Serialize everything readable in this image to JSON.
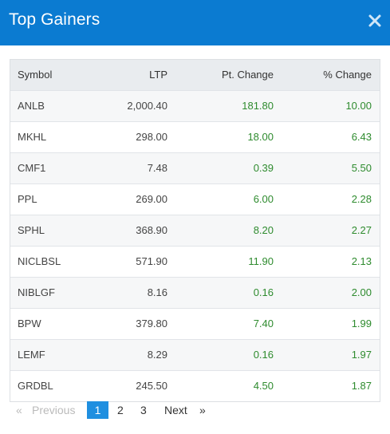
{
  "header": {
    "title": "Top Gainers"
  },
  "table": {
    "columns": [
      "Symbol",
      "LTP",
      "Pt. Change",
      "% Change"
    ],
    "rows": [
      {
        "symbol": "ANLB",
        "ltp": "2,000.40",
        "pt": "181.80",
        "pct": "10.00"
      },
      {
        "symbol": "MKHL",
        "ltp": "298.00",
        "pt": "18.00",
        "pct": "6.43"
      },
      {
        "symbol": "CMF1",
        "ltp": "7.48",
        "pt": "0.39",
        "pct": "5.50"
      },
      {
        "symbol": "PPL",
        "ltp": "269.00",
        "pt": "6.00",
        "pct": "2.28"
      },
      {
        "symbol": "SPHL",
        "ltp": "368.90",
        "pt": "8.20",
        "pct": "2.27"
      },
      {
        "symbol": "NICLBSL",
        "ltp": "571.90",
        "pt": "11.90",
        "pct": "2.13"
      },
      {
        "symbol": "NIBLGF",
        "ltp": "8.16",
        "pt": "0.16",
        "pct": "2.00"
      },
      {
        "symbol": "BPW",
        "ltp": "379.80",
        "pt": "7.40",
        "pct": "1.99"
      },
      {
        "symbol": "LEMF",
        "ltp": "8.29",
        "pt": "0.16",
        "pct": "1.97"
      },
      {
        "symbol": "GRDBL",
        "ltp": "245.50",
        "pt": "4.50",
        "pct": "1.87"
      }
    ]
  },
  "pagination": {
    "first": "«",
    "previous": "Previous",
    "pages": [
      "1",
      "2",
      "3"
    ],
    "active_page": "1",
    "next": "Next",
    "last": "»"
  },
  "colors": {
    "header_bg": "#0b7bd1",
    "positive": "#2e8b2e",
    "active_page": "#1f8fe0"
  },
  "icons": {
    "close": "close-icon"
  }
}
